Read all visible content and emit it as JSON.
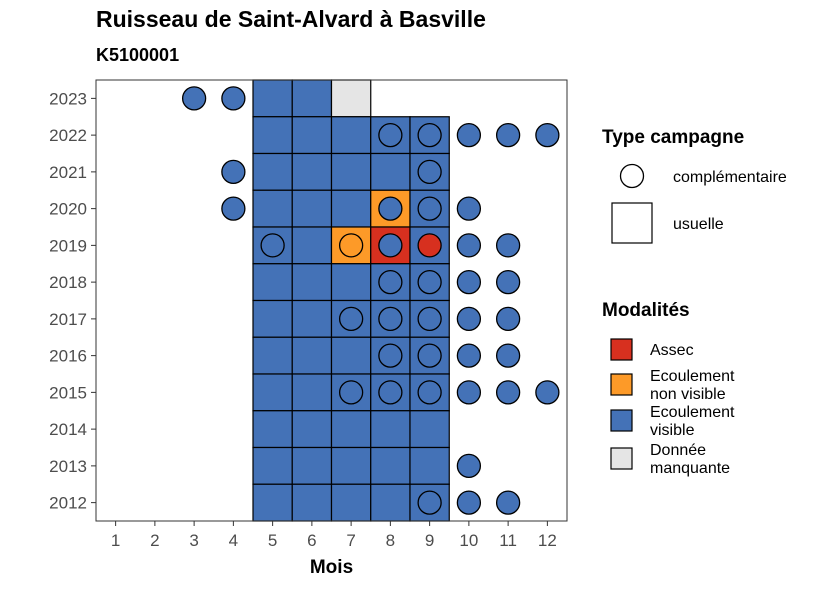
{
  "title": "Ruisseau de Saint-Alvard à Basville",
  "subtitle": "K5100001",
  "colors": {
    "assec": "#d7301f",
    "ecoulement_non_visible": "#fd9a28",
    "ecoulement_visible": "#4472b7",
    "donnee_manquante": "#e5e5e5"
  },
  "chart_data": {
    "type": "heatmap",
    "xlabel": "Mois",
    "ylabel": "",
    "x_ticks": [
      "1",
      "2",
      "3",
      "4",
      "5",
      "6",
      "7",
      "8",
      "9",
      "10",
      "11",
      "12"
    ],
    "y_ticks": [
      "2012",
      "2013",
      "2014",
      "2015",
      "2016",
      "2017",
      "2018",
      "2019",
      "2020",
      "2021",
      "2022",
      "2023"
    ],
    "xlim": [
      0.5,
      12.5
    ],
    "ylim": [
      2011.5,
      2023.5
    ],
    "grid": false,
    "usuelle": [
      {
        "year": 2023,
        "month": 5,
        "status": "ecoulement_visible"
      },
      {
        "year": 2023,
        "month": 6,
        "status": "ecoulement_visible"
      },
      {
        "year": 2023,
        "month": 7,
        "status": "donnee_manquante"
      },
      {
        "year": 2022,
        "month": 5,
        "status": "ecoulement_visible"
      },
      {
        "year": 2022,
        "month": 6,
        "status": "ecoulement_visible"
      },
      {
        "year": 2022,
        "month": 7,
        "status": "ecoulement_visible"
      },
      {
        "year": 2022,
        "month": 8,
        "status": "ecoulement_visible"
      },
      {
        "year": 2022,
        "month": 9,
        "status": "ecoulement_visible"
      },
      {
        "year": 2021,
        "month": 5,
        "status": "ecoulement_visible"
      },
      {
        "year": 2021,
        "month": 6,
        "status": "ecoulement_visible"
      },
      {
        "year": 2021,
        "month": 7,
        "status": "ecoulement_visible"
      },
      {
        "year": 2021,
        "month": 8,
        "status": "ecoulement_visible"
      },
      {
        "year": 2021,
        "month": 9,
        "status": "ecoulement_visible"
      },
      {
        "year": 2020,
        "month": 5,
        "status": "ecoulement_visible"
      },
      {
        "year": 2020,
        "month": 6,
        "status": "ecoulement_visible"
      },
      {
        "year": 2020,
        "month": 7,
        "status": "ecoulement_visible"
      },
      {
        "year": 2020,
        "month": 8,
        "status": "ecoulement_non_visible"
      },
      {
        "year": 2020,
        "month": 9,
        "status": "ecoulement_visible"
      },
      {
        "year": 2019,
        "month": 5,
        "status": "ecoulement_visible"
      },
      {
        "year": 2019,
        "month": 6,
        "status": "ecoulement_visible"
      },
      {
        "year": 2019,
        "month": 7,
        "status": "ecoulement_non_visible"
      },
      {
        "year": 2019,
        "month": 8,
        "status": "assec"
      },
      {
        "year": 2019,
        "month": 9,
        "status": "ecoulement_visible"
      },
      {
        "year": 2018,
        "month": 5,
        "status": "ecoulement_visible"
      },
      {
        "year": 2018,
        "month": 6,
        "status": "ecoulement_visible"
      },
      {
        "year": 2018,
        "month": 7,
        "status": "ecoulement_visible"
      },
      {
        "year": 2018,
        "month": 8,
        "status": "ecoulement_visible"
      },
      {
        "year": 2018,
        "month": 9,
        "status": "ecoulement_visible"
      },
      {
        "year": 2017,
        "month": 5,
        "status": "ecoulement_visible"
      },
      {
        "year": 2017,
        "month": 6,
        "status": "ecoulement_visible"
      },
      {
        "year": 2017,
        "month": 7,
        "status": "ecoulement_visible"
      },
      {
        "year": 2017,
        "month": 8,
        "status": "ecoulement_visible"
      },
      {
        "year": 2017,
        "month": 9,
        "status": "ecoulement_visible"
      },
      {
        "year": 2016,
        "month": 5,
        "status": "ecoulement_visible"
      },
      {
        "year": 2016,
        "month": 6,
        "status": "ecoulement_visible"
      },
      {
        "year": 2016,
        "month": 7,
        "status": "ecoulement_visible"
      },
      {
        "year": 2016,
        "month": 8,
        "status": "ecoulement_visible"
      },
      {
        "year": 2016,
        "month": 9,
        "status": "ecoulement_visible"
      },
      {
        "year": 2015,
        "month": 5,
        "status": "ecoulement_visible"
      },
      {
        "year": 2015,
        "month": 6,
        "status": "ecoulement_visible"
      },
      {
        "year": 2015,
        "month": 7,
        "status": "ecoulement_visible"
      },
      {
        "year": 2015,
        "month": 8,
        "status": "ecoulement_visible"
      },
      {
        "year": 2015,
        "month": 9,
        "status": "ecoulement_visible"
      },
      {
        "year": 2014,
        "month": 5,
        "status": "ecoulement_visible"
      },
      {
        "year": 2014,
        "month": 6,
        "status": "ecoulement_visible"
      },
      {
        "year": 2014,
        "month": 7,
        "status": "ecoulement_visible"
      },
      {
        "year": 2014,
        "month": 8,
        "status": "ecoulement_visible"
      },
      {
        "year": 2014,
        "month": 9,
        "status": "ecoulement_visible"
      },
      {
        "year": 2013,
        "month": 5,
        "status": "ecoulement_visible"
      },
      {
        "year": 2013,
        "month": 6,
        "status": "ecoulement_visible"
      },
      {
        "year": 2013,
        "month": 7,
        "status": "ecoulement_visible"
      },
      {
        "year": 2013,
        "month": 8,
        "status": "ecoulement_visible"
      },
      {
        "year": 2013,
        "month": 9,
        "status": "ecoulement_visible"
      },
      {
        "year": 2012,
        "month": 5,
        "status": "ecoulement_visible"
      },
      {
        "year": 2012,
        "month": 6,
        "status": "ecoulement_visible"
      },
      {
        "year": 2012,
        "month": 7,
        "status": "ecoulement_visible"
      },
      {
        "year": 2012,
        "month": 8,
        "status": "ecoulement_visible"
      },
      {
        "year": 2012,
        "month": 9,
        "status": "ecoulement_visible"
      }
    ],
    "complementaire": [
      {
        "year": 2023,
        "month": 3,
        "status": "ecoulement_visible"
      },
      {
        "year": 2023,
        "month": 4,
        "status": "ecoulement_visible"
      },
      {
        "year": 2022,
        "month": 8,
        "status": "ecoulement_visible"
      },
      {
        "year": 2022,
        "month": 9,
        "status": "ecoulement_visible"
      },
      {
        "year": 2022,
        "month": 10,
        "status": "ecoulement_visible"
      },
      {
        "year": 2022,
        "month": 11,
        "status": "ecoulement_visible"
      },
      {
        "year": 2022,
        "month": 12,
        "status": "ecoulement_visible"
      },
      {
        "year": 2021,
        "month": 4,
        "status": "ecoulement_visible"
      },
      {
        "year": 2021,
        "month": 9,
        "status": "ecoulement_visible"
      },
      {
        "year": 2020,
        "month": 4,
        "status": "ecoulement_visible"
      },
      {
        "year": 2020,
        "month": 8,
        "status": "ecoulement_visible"
      },
      {
        "year": 2020,
        "month": 9,
        "status": "ecoulement_visible"
      },
      {
        "year": 2020,
        "month": 10,
        "status": "ecoulement_visible"
      },
      {
        "year": 2019,
        "month": 5,
        "status": "ecoulement_visible"
      },
      {
        "year": 2019,
        "month": 7,
        "status": "ecoulement_non_visible"
      },
      {
        "year": 2019,
        "month": 8,
        "status": "ecoulement_visible"
      },
      {
        "year": 2019,
        "month": 9,
        "status": "assec"
      },
      {
        "year": 2019,
        "month": 10,
        "status": "ecoulement_visible"
      },
      {
        "year": 2019,
        "month": 11,
        "status": "ecoulement_visible"
      },
      {
        "year": 2018,
        "month": 8,
        "status": "ecoulement_visible"
      },
      {
        "year": 2018,
        "month": 9,
        "status": "ecoulement_visible"
      },
      {
        "year": 2018,
        "month": 10,
        "status": "ecoulement_visible"
      },
      {
        "year": 2018,
        "month": 11,
        "status": "ecoulement_visible"
      },
      {
        "year": 2017,
        "month": 7,
        "status": "ecoulement_visible"
      },
      {
        "year": 2017,
        "month": 8,
        "status": "ecoulement_visible"
      },
      {
        "year": 2017,
        "month": 9,
        "status": "ecoulement_visible"
      },
      {
        "year": 2017,
        "month": 10,
        "status": "ecoulement_visible"
      },
      {
        "year": 2017,
        "month": 11,
        "status": "ecoulement_visible"
      },
      {
        "year": 2016,
        "month": 8,
        "status": "ecoulement_visible"
      },
      {
        "year": 2016,
        "month": 9,
        "status": "ecoulement_visible"
      },
      {
        "year": 2016,
        "month": 10,
        "status": "ecoulement_visible"
      },
      {
        "year": 2016,
        "month": 11,
        "status": "ecoulement_visible"
      },
      {
        "year": 2015,
        "month": 7,
        "status": "ecoulement_visible"
      },
      {
        "year": 2015,
        "month": 8,
        "status": "ecoulement_visible"
      },
      {
        "year": 2015,
        "month": 9,
        "status": "ecoulement_visible"
      },
      {
        "year": 2015,
        "month": 10,
        "status": "ecoulement_visible"
      },
      {
        "year": 2015,
        "month": 11,
        "status": "ecoulement_visible"
      },
      {
        "year": 2015,
        "month": 12,
        "status": "ecoulement_visible"
      },
      {
        "year": 2013,
        "month": 10,
        "status": "ecoulement_visible"
      },
      {
        "year": 2012,
        "month": 9,
        "status": "ecoulement_visible"
      },
      {
        "year": 2012,
        "month": 10,
        "status": "ecoulement_visible"
      },
      {
        "year": 2012,
        "month": 11,
        "status": "ecoulement_visible"
      }
    ],
    "legend": {
      "placement": "right",
      "type_campagne": {
        "title": "Type campagne",
        "items": [
          "complémentaire",
          "usuelle"
        ]
      },
      "modalites": {
        "title": "Modalités",
        "items": [
          {
            "key": "assec",
            "lines": [
              "Assec"
            ]
          },
          {
            "key": "ecoulement_non_visible",
            "lines": [
              "Ecoulement",
              "non visible"
            ]
          },
          {
            "key": "ecoulement_visible",
            "lines": [
              "Ecoulement",
              "visible"
            ]
          },
          {
            "key": "donnee_manquante",
            "lines": [
              "Donnée",
              "manquante"
            ]
          }
        ]
      }
    }
  }
}
